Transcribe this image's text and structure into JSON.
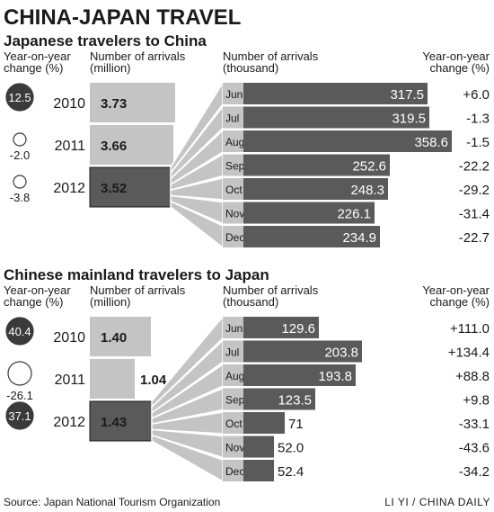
{
  "title": "CHINA-JAPAN TRAVEL",
  "source": "Source: Japan National Tourism Organization",
  "credit": "LI YI / CHINA DAILY",
  "colors": {
    "dark": "#5a5a5a",
    "medium": "#9a9a9a",
    "light": "#c4c4c4",
    "bubble": "#3a3a3a",
    "ink": "#1a1a1a"
  },
  "chart_data": [
    {
      "type": "bar",
      "title": "Japanese travelers to China",
      "labels": {
        "yoy_header": "Year-on-year change (%)",
        "annual_header": "Number of arrivals (million)",
        "monthly_header": "Number of arrivals (thousand)",
        "monthly_yoy_header": "Year-on-year change (%)"
      },
      "annual": {
        "categories": [
          "2010",
          "2011",
          "2012"
        ],
        "values": [
          3.73,
          3.66,
          3.52
        ],
        "value_labels": [
          "3.73",
          "3.66",
          "3.52"
        ],
        "yoy": [
          12.5,
          -2.0,
          -3.8
        ],
        "yoy_labels": [
          "12.5",
          "-2.0",
          "-3.8"
        ],
        "unit": "million"
      },
      "monthly": {
        "year": "2012",
        "categories": [
          "Jun",
          "Jul",
          "Aug",
          "Sep",
          "Oct",
          "Nov",
          "Dec"
        ],
        "values": [
          317.5,
          319.5,
          358.6,
          252.6,
          248.3,
          226.1,
          234.9
        ],
        "value_labels": [
          "317.5",
          "319.5",
          "358.6",
          "252.6",
          "248.3",
          "226.1",
          "234.9"
        ],
        "yoy": [
          6.0,
          -1.3,
          -1.5,
          -22.2,
          -29.2,
          -31.4,
          -22.7
        ],
        "yoy_labels": [
          "+6.0",
          "-1.3",
          "-1.5",
          "-22.2",
          "-29.2",
          "-31.4",
          "-22.7"
        ],
        "unit": "thousand"
      }
    },
    {
      "type": "bar",
      "title": "Chinese mainland travelers to Japan",
      "labels": {
        "yoy_header": "Year-on-year change (%)",
        "annual_header": "Number of arrivals (million)",
        "monthly_header": "Number of arrivals (thousand)",
        "monthly_yoy_header": "Year-on-year change (%)"
      },
      "annual": {
        "categories": [
          "2010",
          "2011",
          "2012"
        ],
        "values": [
          1.4,
          1.04,
          1.43
        ],
        "value_labels": [
          "1.40",
          "1.04",
          "1.43"
        ],
        "yoy": [
          40.4,
          -26.1,
          37.1
        ],
        "yoy_labels": [
          "40.4",
          "-26.1",
          "37.1"
        ],
        "unit": "million"
      },
      "monthly": {
        "year": "2012",
        "categories": [
          "Jun",
          "Jul",
          "Aug",
          "Sep",
          "Oct",
          "Nov",
          "Dec"
        ],
        "values": [
          129.6,
          203.8,
          193.8,
          123.5,
          71,
          52.0,
          52.4
        ],
        "value_labels": [
          "129.6",
          "203.8",
          "193.8",
          "123.5",
          "71",
          "52.0",
          "52.4"
        ],
        "yoy": [
          111.0,
          134.4,
          88.8,
          9.8,
          -33.1,
          -43.6,
          -34.2
        ],
        "yoy_labels": [
          "+111.0",
          "+134.4",
          "+88.8",
          "+9.8",
          "-33.1",
          "-43.6",
          "-34.2"
        ],
        "unit": "thousand"
      }
    }
  ]
}
